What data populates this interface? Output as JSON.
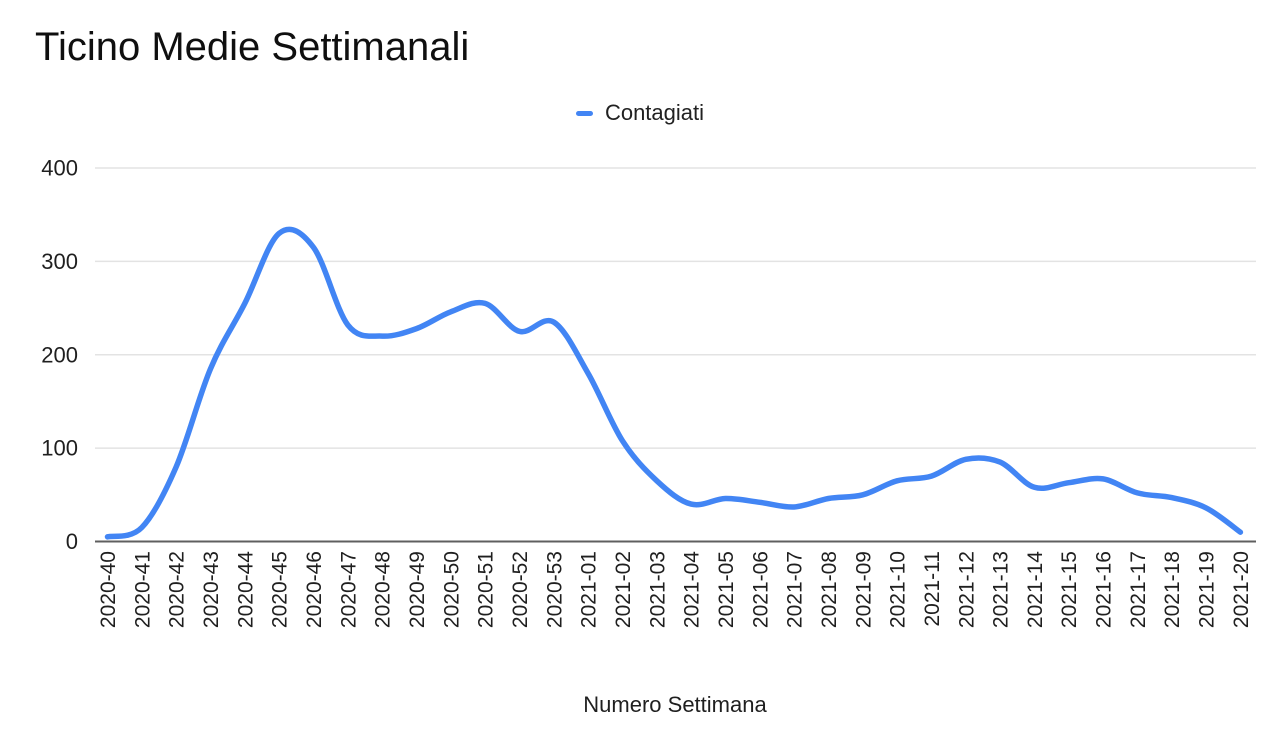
{
  "chart_data": {
    "type": "line",
    "title": "Ticino Medie Settimanali",
    "xlabel": "Numero Settimana",
    "ylabel": "",
    "ylim": [
      0,
      400
    ],
    "y_ticks": [
      0,
      100,
      200,
      300,
      400
    ],
    "grid": true,
    "legend_position": "top-center",
    "smooth": true,
    "categories": [
      "2020-40",
      "2020-41",
      "2020-42",
      "2020-43",
      "2020-44",
      "2020-45",
      "2020-46",
      "2020-47",
      "2020-48",
      "2020-49",
      "2020-50",
      "2020-51",
      "2020-52",
      "2020-53",
      "2021-01",
      "2021-02",
      "2021-03",
      "2021-04",
      "2021-05",
      "2021-06",
      "2021-07",
      "2021-08",
      "2021-09",
      "2021-10",
      "2021-11",
      "2021-12",
      "2021-13",
      "2021-14",
      "2021-15",
      "2021-16",
      "2021-17",
      "2021-18",
      "2021-19",
      "2021-20"
    ],
    "series": [
      {
        "name": "Contagiati",
        "color": "#4285f4",
        "values": [
          5,
          15,
          80,
          185,
          255,
          330,
          315,
          232,
          220,
          228,
          246,
          255,
          225,
          235,
          180,
          108,
          65,
          40,
          46,
          42,
          37,
          46,
          50,
          65,
          70,
          88,
          85,
          58,
          63,
          67,
          52,
          47,
          36,
          10
        ]
      }
    ],
    "colors": {
      "line": "#4285f4",
      "gridline": "#e3e3e3",
      "axis_line": "#5f5f5f",
      "tick_label": "#1f1f1f",
      "title": "#0f0f0f"
    }
  }
}
